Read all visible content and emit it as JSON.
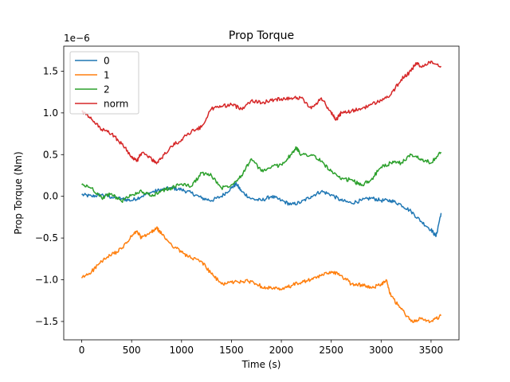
{
  "chart_data": {
    "type": "line",
    "title": "Prop Torque",
    "xlabel": "Time (s)",
    "ylabel": "Prop Torque (Nm)",
    "y_offset_label": "1e−6",
    "xlim": [
      -180,
      3780
    ],
    "ylim": [
      -1.72,
      1.8
    ],
    "xticks": [
      0,
      500,
      1000,
      1500,
      2000,
      2500,
      3000,
      3500
    ],
    "xtick_labels": [
      "0",
      "500",
      "1000",
      "1500",
      "2000",
      "2500",
      "3000",
      "3500"
    ],
    "yticks": [
      -1.5,
      -1.0,
      -0.5,
      0.0,
      0.5,
      1.0,
      1.5
    ],
    "ytick_labels": [
      "−1.5",
      "−1.0",
      "−0.5",
      "0.0",
      "0.5",
      "1.0",
      "1.5"
    ],
    "legend_position": "upper-left",
    "series": [
      {
        "name": "0",
        "color": "#1f77b4",
        "points": [
          [
            0,
            0.02
          ],
          [
            100,
            0.0
          ],
          [
            200,
            0.02
          ],
          [
            300,
            -0.01
          ],
          [
            400,
            -0.03
          ],
          [
            500,
            -0.05
          ],
          [
            600,
            0.0
          ],
          [
            700,
            0.05
          ],
          [
            800,
            0.08
          ],
          [
            900,
            0.1
          ],
          [
            1000,
            0.08
          ],
          [
            1100,
            0.04
          ],
          [
            1200,
            -0.02
          ],
          [
            1300,
            -0.05
          ],
          [
            1400,
            0.0
          ],
          [
            1500,
            0.1
          ],
          [
            1550,
            0.15
          ],
          [
            1600,
            0.06
          ],
          [
            1700,
            -0.03
          ],
          [
            1800,
            -0.05
          ],
          [
            1900,
            0.0
          ],
          [
            2000,
            -0.05
          ],
          [
            2100,
            -0.1
          ],
          [
            2200,
            -0.07
          ],
          [
            2300,
            0.0
          ],
          [
            2400,
            0.06
          ],
          [
            2500,
            0.02
          ],
          [
            2600,
            -0.05
          ],
          [
            2700,
            -0.08
          ],
          [
            2800,
            -0.05
          ],
          [
            2900,
            -0.02
          ],
          [
            3000,
            -0.05
          ],
          [
            3100,
            -0.05
          ],
          [
            3200,
            -0.1
          ],
          [
            3300,
            -0.18
          ],
          [
            3400,
            -0.3
          ],
          [
            3500,
            -0.4
          ],
          [
            3550,
            -0.48
          ],
          [
            3600,
            -0.2
          ]
        ]
      },
      {
        "name": "1",
        "color": "#ff7f0e",
        "points": [
          [
            0,
            -0.98
          ],
          [
            100,
            -0.9
          ],
          [
            200,
            -0.78
          ],
          [
            300,
            -0.7
          ],
          [
            400,
            -0.63
          ],
          [
            500,
            -0.48
          ],
          [
            550,
            -0.42
          ],
          [
            600,
            -0.5
          ],
          [
            700,
            -0.43
          ],
          [
            750,
            -0.38
          ],
          [
            800,
            -0.45
          ],
          [
            900,
            -0.58
          ],
          [
            1000,
            -0.67
          ],
          [
            1100,
            -0.74
          ],
          [
            1200,
            -0.78
          ],
          [
            1300,
            -0.93
          ],
          [
            1400,
            -1.05
          ],
          [
            1500,
            -1.03
          ],
          [
            1600,
            -1.02
          ],
          [
            1700,
            -1.02
          ],
          [
            1800,
            -1.08
          ],
          [
            1900,
            -1.1
          ],
          [
            2000,
            -1.12
          ],
          [
            2100,
            -1.07
          ],
          [
            2200,
            -1.03
          ],
          [
            2300,
            -1.0
          ],
          [
            2400,
            -0.95
          ],
          [
            2500,
            -0.9
          ],
          [
            2600,
            -0.95
          ],
          [
            2700,
            -1.05
          ],
          [
            2800,
            -1.06
          ],
          [
            2900,
            -1.1
          ],
          [
            3000,
            -1.05
          ],
          [
            3050,
            -1.0
          ],
          [
            3100,
            -1.2
          ],
          [
            3200,
            -1.35
          ],
          [
            3300,
            -1.5
          ],
          [
            3400,
            -1.47
          ],
          [
            3500,
            -1.5
          ],
          [
            3600,
            -1.43
          ]
        ]
      },
      {
        "name": "2",
        "color": "#2ca02c",
        "points": [
          [
            0,
            0.14
          ],
          [
            100,
            0.1
          ],
          [
            200,
            -0.02
          ],
          [
            300,
            0.03
          ],
          [
            400,
            -0.06
          ],
          [
            500,
            0.02
          ],
          [
            600,
            0.06
          ],
          [
            700,
            0.0
          ],
          [
            800,
            0.07
          ],
          [
            900,
            0.1
          ],
          [
            1000,
            0.15
          ],
          [
            1100,
            0.12
          ],
          [
            1200,
            0.28
          ],
          [
            1300,
            0.25
          ],
          [
            1400,
            0.1
          ],
          [
            1500,
            0.14
          ],
          [
            1600,
            0.25
          ],
          [
            1700,
            0.45
          ],
          [
            1800,
            0.3
          ],
          [
            1900,
            0.35
          ],
          [
            2000,
            0.38
          ],
          [
            2100,
            0.5
          ],
          [
            2150,
            0.58
          ],
          [
            2200,
            0.5
          ],
          [
            2300,
            0.5
          ],
          [
            2400,
            0.42
          ],
          [
            2500,
            0.3
          ],
          [
            2600,
            0.2
          ],
          [
            2700,
            0.2
          ],
          [
            2800,
            0.13
          ],
          [
            2900,
            0.2
          ],
          [
            3000,
            0.35
          ],
          [
            3100,
            0.4
          ],
          [
            3200,
            0.4
          ],
          [
            3300,
            0.5
          ],
          [
            3400,
            0.45
          ],
          [
            3500,
            0.4
          ],
          [
            3600,
            0.53
          ]
        ]
      },
      {
        "name": "norm",
        "color": "#d62728",
        "points": [
          [
            0,
            1.02
          ],
          [
            100,
            0.92
          ],
          [
            200,
            0.8
          ],
          [
            300,
            0.75
          ],
          [
            400,
            0.63
          ],
          [
            500,
            0.48
          ],
          [
            550,
            0.42
          ],
          [
            600,
            0.52
          ],
          [
            700,
            0.45
          ],
          [
            750,
            0.39
          ],
          [
            800,
            0.46
          ],
          [
            900,
            0.6
          ],
          [
            1000,
            0.68
          ],
          [
            1100,
            0.78
          ],
          [
            1200,
            0.83
          ],
          [
            1300,
            1.05
          ],
          [
            1400,
            1.08
          ],
          [
            1500,
            1.1
          ],
          [
            1600,
            1.05
          ],
          [
            1700,
            1.15
          ],
          [
            1800,
            1.12
          ],
          [
            1900,
            1.15
          ],
          [
            2000,
            1.17
          ],
          [
            2100,
            1.18
          ],
          [
            2200,
            1.18
          ],
          [
            2300,
            1.05
          ],
          [
            2400,
            1.18
          ],
          [
            2500,
            1.0
          ],
          [
            2550,
            0.92
          ],
          [
            2600,
            1.0
          ],
          [
            2700,
            1.02
          ],
          [
            2800,
            1.05
          ],
          [
            2900,
            1.1
          ],
          [
            3000,
            1.15
          ],
          [
            3100,
            1.22
          ],
          [
            3200,
            1.4
          ],
          [
            3300,
            1.5
          ],
          [
            3350,
            1.6
          ],
          [
            3400,
            1.55
          ],
          [
            3500,
            1.62
          ],
          [
            3600,
            1.56
          ]
        ]
      }
    ]
  }
}
